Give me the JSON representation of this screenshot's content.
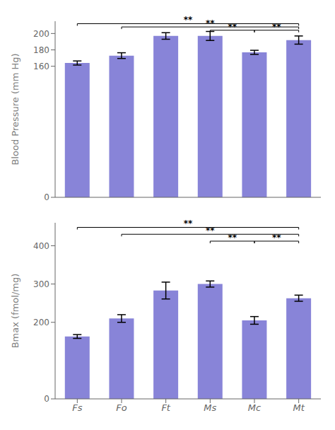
{
  "chart_data": [
    {
      "type": "bar",
      "categories": [
        "Fs",
        "Fo",
        "Ft",
        "Ms",
        "Mc",
        "Mt"
      ],
      "values": [
        164,
        173,
        197,
        197,
        177,
        192
      ],
      "errors": [
        2.5,
        3.5,
        4.0,
        5.5,
        2.5,
        5.0
      ],
      "y_label": "Blood Pressure (mm Hg)",
      "ylim": [
        0,
        215
      ],
      "yticks": [
        0,
        160,
        180,
        200
      ],
      "grid": false,
      "tick_labels": "y",
      "annotations": [
        {
          "text": "**",
          "x": [
            "Fs",
            "Mt"
          ],
          "y": 212
        },
        {
          "text": "**",
          "x": [
            "Fo",
            "Mt"
          ],
          "y": 208
        },
        {
          "text": "**",
          "x": [
            "Ms",
            "Mc"
          ],
          "y": 204
        },
        {
          "text": "**",
          "x": [
            "Mc",
            "Mt"
          ],
          "y": 204
        }
      ]
    },
    {
      "type": "bar",
      "categories": [
        "Fs",
        "Fo",
        "Ft",
        "Ms",
        "Mc",
        "Mt"
      ],
      "values": [
        163,
        210,
        283,
        300,
        205,
        263
      ],
      "errors": [
        5,
        10,
        22,
        8,
        10,
        8
      ],
      "y_label": "Bmax (fmol/mg)",
      "ylim": [
        0,
        460
      ],
      "yticks": [
        0,
        200,
        300,
        400
      ],
      "grid": false,
      "annotations": [
        {
          "text": "**",
          "x": [
            "Fs",
            "Mt"
          ],
          "y": 448
        },
        {
          "text": "**",
          "x": [
            "Fo",
            "Mt"
          ],
          "y": 430
        },
        {
          "text": "**",
          "x": [
            "Ms",
            "Mc"
          ],
          "y": 412
        },
        {
          "text": "**",
          "x": [
            "Mc",
            "Mt"
          ],
          "y": 412
        }
      ]
    }
  ]
}
